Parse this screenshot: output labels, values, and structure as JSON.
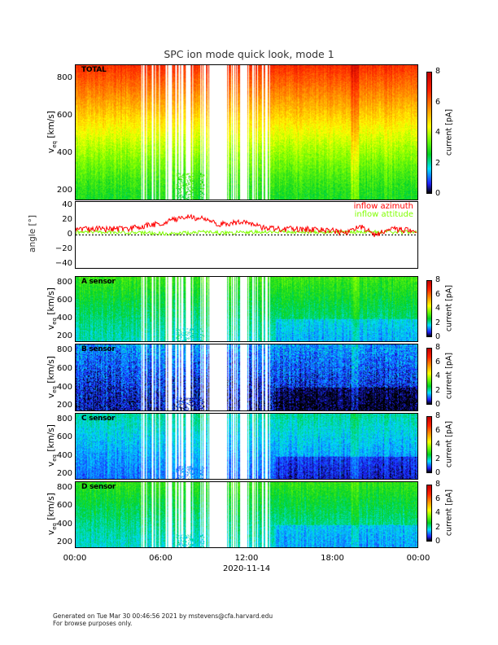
{
  "title": "SPC ion mode quick look, mode 1",
  "x_axis": {
    "ticks": [
      "00:00",
      "06:00",
      "12:00",
      "18:00",
      "00:00"
    ],
    "date_label": "2020-11-14"
  },
  "footer": {
    "line1": "Generated on Tue Mar 30 00:46:56 2021 by mstevens@cfa.harvard.edu",
    "line2": "For browse purposes only."
  },
  "colorbar": {
    "label": "current [pA]",
    "ticks": [
      "0",
      "2",
      "4",
      "6",
      "8"
    ],
    "range": [
      0,
      8
    ]
  },
  "spectro_ylabel": "v",
  "spectro_ylabel_sub": "eq",
  "spectro_ylabel_unit": "[km/s]",
  "angle_panel": {
    "ylabel": "angle [°]",
    "ticks": [
      "40",
      "20",
      "0",
      "−20",
      "−40"
    ],
    "legend": [
      {
        "label": "inflow azimuth",
        "color": "#ff0000"
      },
      {
        "label": "inflow attitude",
        "color": "#80ff00"
      }
    ]
  },
  "chart_data": {
    "type": "heatmap",
    "title": "SPC ion mode quick look, mode 1",
    "xlabel": "2020-11-14",
    "x_range_hours": [
      0,
      24
    ],
    "colorbar_range_pA": [
      0,
      8
    ],
    "data_gap_region_hours": [
      4.6,
      13.6
    ],
    "panels": [
      {
        "name": "TOTAL",
        "ylabel": "v_eq [km/s]",
        "ylim": [
          150,
          880
        ],
        "yticks": [
          "200",
          "400",
          "600",
          "800"
        ],
        "current_low_pA": 2.6,
        "current_high_pA": 6.8
      },
      {
        "name": "A sensor",
        "ylabel": "v_eq [km/s]",
        "ylim": [
          150,
          880
        ],
        "yticks": [
          "200",
          "400",
          "600",
          "800"
        ],
        "current_low_pA": 1.8,
        "current_high_pA": 2.9
      },
      {
        "name": "B sensor",
        "ylabel": "v_eq [km/s]",
        "ylim": [
          150,
          880
        ],
        "yticks": [
          "200",
          "400",
          "600",
          "800"
        ],
        "current_low_pA": 0.4,
        "current_high_pA": 1.2
      },
      {
        "name": "C sensor",
        "ylabel": "v_eq [km/s]",
        "ylim": [
          150,
          880
        ],
        "yticks": [
          "200",
          "400",
          "600",
          "800"
        ],
        "current_low_pA": 1.0,
        "current_high_pA": 1.9
      },
      {
        "name": "D sensor",
        "ylabel": "v_eq [km/s]",
        "ylim": [
          150,
          880
        ],
        "yticks": [
          "200",
          "400",
          "600",
          "800"
        ],
        "current_low_pA": 1.7,
        "current_high_pA": 2.8
      }
    ],
    "angle_series": {
      "ylim": [
        -45,
        45
      ],
      "x_hours": [
        0,
        1,
        2,
        3,
        4,
        5,
        6,
        7,
        8,
        9,
        10,
        11,
        12,
        13,
        14,
        15,
        16,
        17,
        18,
        19,
        20,
        21,
        22,
        23,
        24
      ],
      "series": [
        {
          "name": "inflow azimuth",
          "values": [
            8,
            8,
            8,
            8,
            9,
            13,
            15,
            22,
            24,
            22,
            15,
            16,
            18,
            10,
            8,
            8,
            8,
            7,
            6,
            2,
            12,
            0,
            8,
            7,
            7
          ]
        },
        {
          "name": "inflow attitude",
          "values": [
            4,
            4,
            4,
            4,
            3,
            3,
            2,
            2,
            3,
            4,
            3,
            3,
            4,
            4,
            4,
            4,
            4,
            4,
            4,
            4,
            4,
            4,
            4,
            4,
            4
          ]
        }
      ]
    }
  }
}
